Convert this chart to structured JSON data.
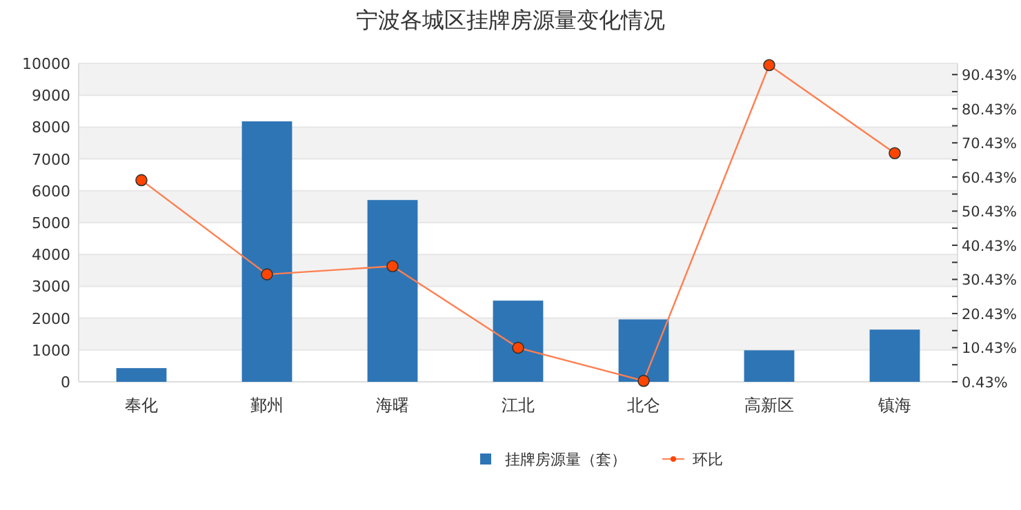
{
  "chart_data": {
    "type": "bar",
    "title": "宁波各城区挂牌房源量变化情况",
    "categories": [
      "奉化",
      "鄞州",
      "海曙",
      "江北",
      "北仑",
      "高新区",
      "镇海"
    ],
    "series": [
      {
        "name": "挂牌房源量（套）",
        "color": "#2e75b6",
        "values": [
          430,
          8180,
          5710,
          2550,
          1960,
          990,
          1640
        ]
      },
      {
        "name": "环比",
        "type": "line",
        "axis": "y2",
        "color": "#ff4500",
        "marker": "circle",
        "values": [
          59.5,
          31.9,
          34.3,
          10.4,
          0.7,
          93.2,
          67.4
        ]
      }
    ],
    "ylim": [
      0,
      10000
    ],
    "yticks": [
      0,
      1000,
      2000,
      3000,
      4000,
      5000,
      6000,
      7000,
      8000,
      9000,
      10000
    ],
    "y2lim": [
      0.43,
      93.7
    ],
    "y2ticks": [
      {
        "value": 0.43,
        "label": "0.43%"
      },
      {
        "value": 5.43,
        "label": null
      },
      {
        "value": 10.43,
        "label": "10.43%"
      },
      {
        "value": 15.43,
        "label": null
      },
      {
        "value": 20.43,
        "label": "20.43%"
      },
      {
        "value": 25.43,
        "label": null
      },
      {
        "value": 30.43,
        "label": "30.43%"
      },
      {
        "value": 35.43,
        "label": null
      },
      {
        "value": 40.43,
        "label": "40.43%"
      },
      {
        "value": 45.43,
        "label": null
      },
      {
        "value": 50.43,
        "label": "50.43%"
      },
      {
        "value": 55.43,
        "label": null
      },
      {
        "value": 60.43,
        "label": "60.43%"
      },
      {
        "value": 65.43,
        "label": null
      },
      {
        "value": 70.43,
        "label": "70.43%"
      },
      {
        "value": 75.43,
        "label": null
      },
      {
        "value": 80.43,
        "label": "80.43%"
      },
      {
        "value": 85.43,
        "label": null
      },
      {
        "value": 90.43,
        "label": "90.43%"
      }
    ],
    "grid": "y",
    "legend": "bottom"
  }
}
